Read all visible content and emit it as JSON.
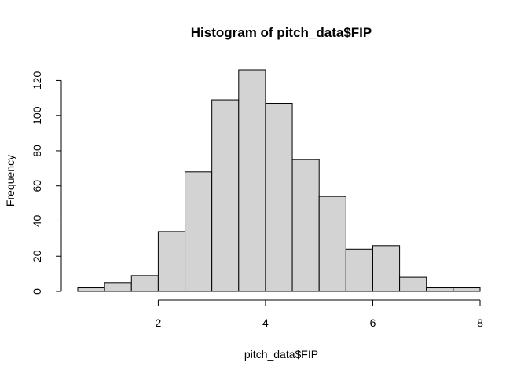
{
  "chart_data": {
    "type": "bar",
    "title": "Histogram of pitch_data$FIP",
    "xlabel": "pitch_data$FIP",
    "ylabel": "Frequency",
    "bin_edges": [
      0.5,
      1.0,
      1.5,
      2.0,
      2.5,
      3.0,
      3.5,
      4.0,
      4.5,
      5.0,
      5.5,
      6.0,
      6.5,
      7.0,
      7.5,
      8.0
    ],
    "values": [
      2,
      5,
      9,
      34,
      68,
      109,
      126,
      107,
      75,
      54,
      24,
      26,
      8,
      2,
      2
    ],
    "xlim": [
      0.5,
      8
    ],
    "ylim": [
      0,
      126
    ],
    "x_ticks": [
      2,
      4,
      6,
      8
    ],
    "y_ticks": [
      0,
      20,
      40,
      60,
      80,
      100,
      120
    ],
    "grid": false,
    "colors": {
      "bar_fill": "#d3d3d3",
      "bar_stroke": "#000000",
      "background": "#ffffff"
    }
  }
}
